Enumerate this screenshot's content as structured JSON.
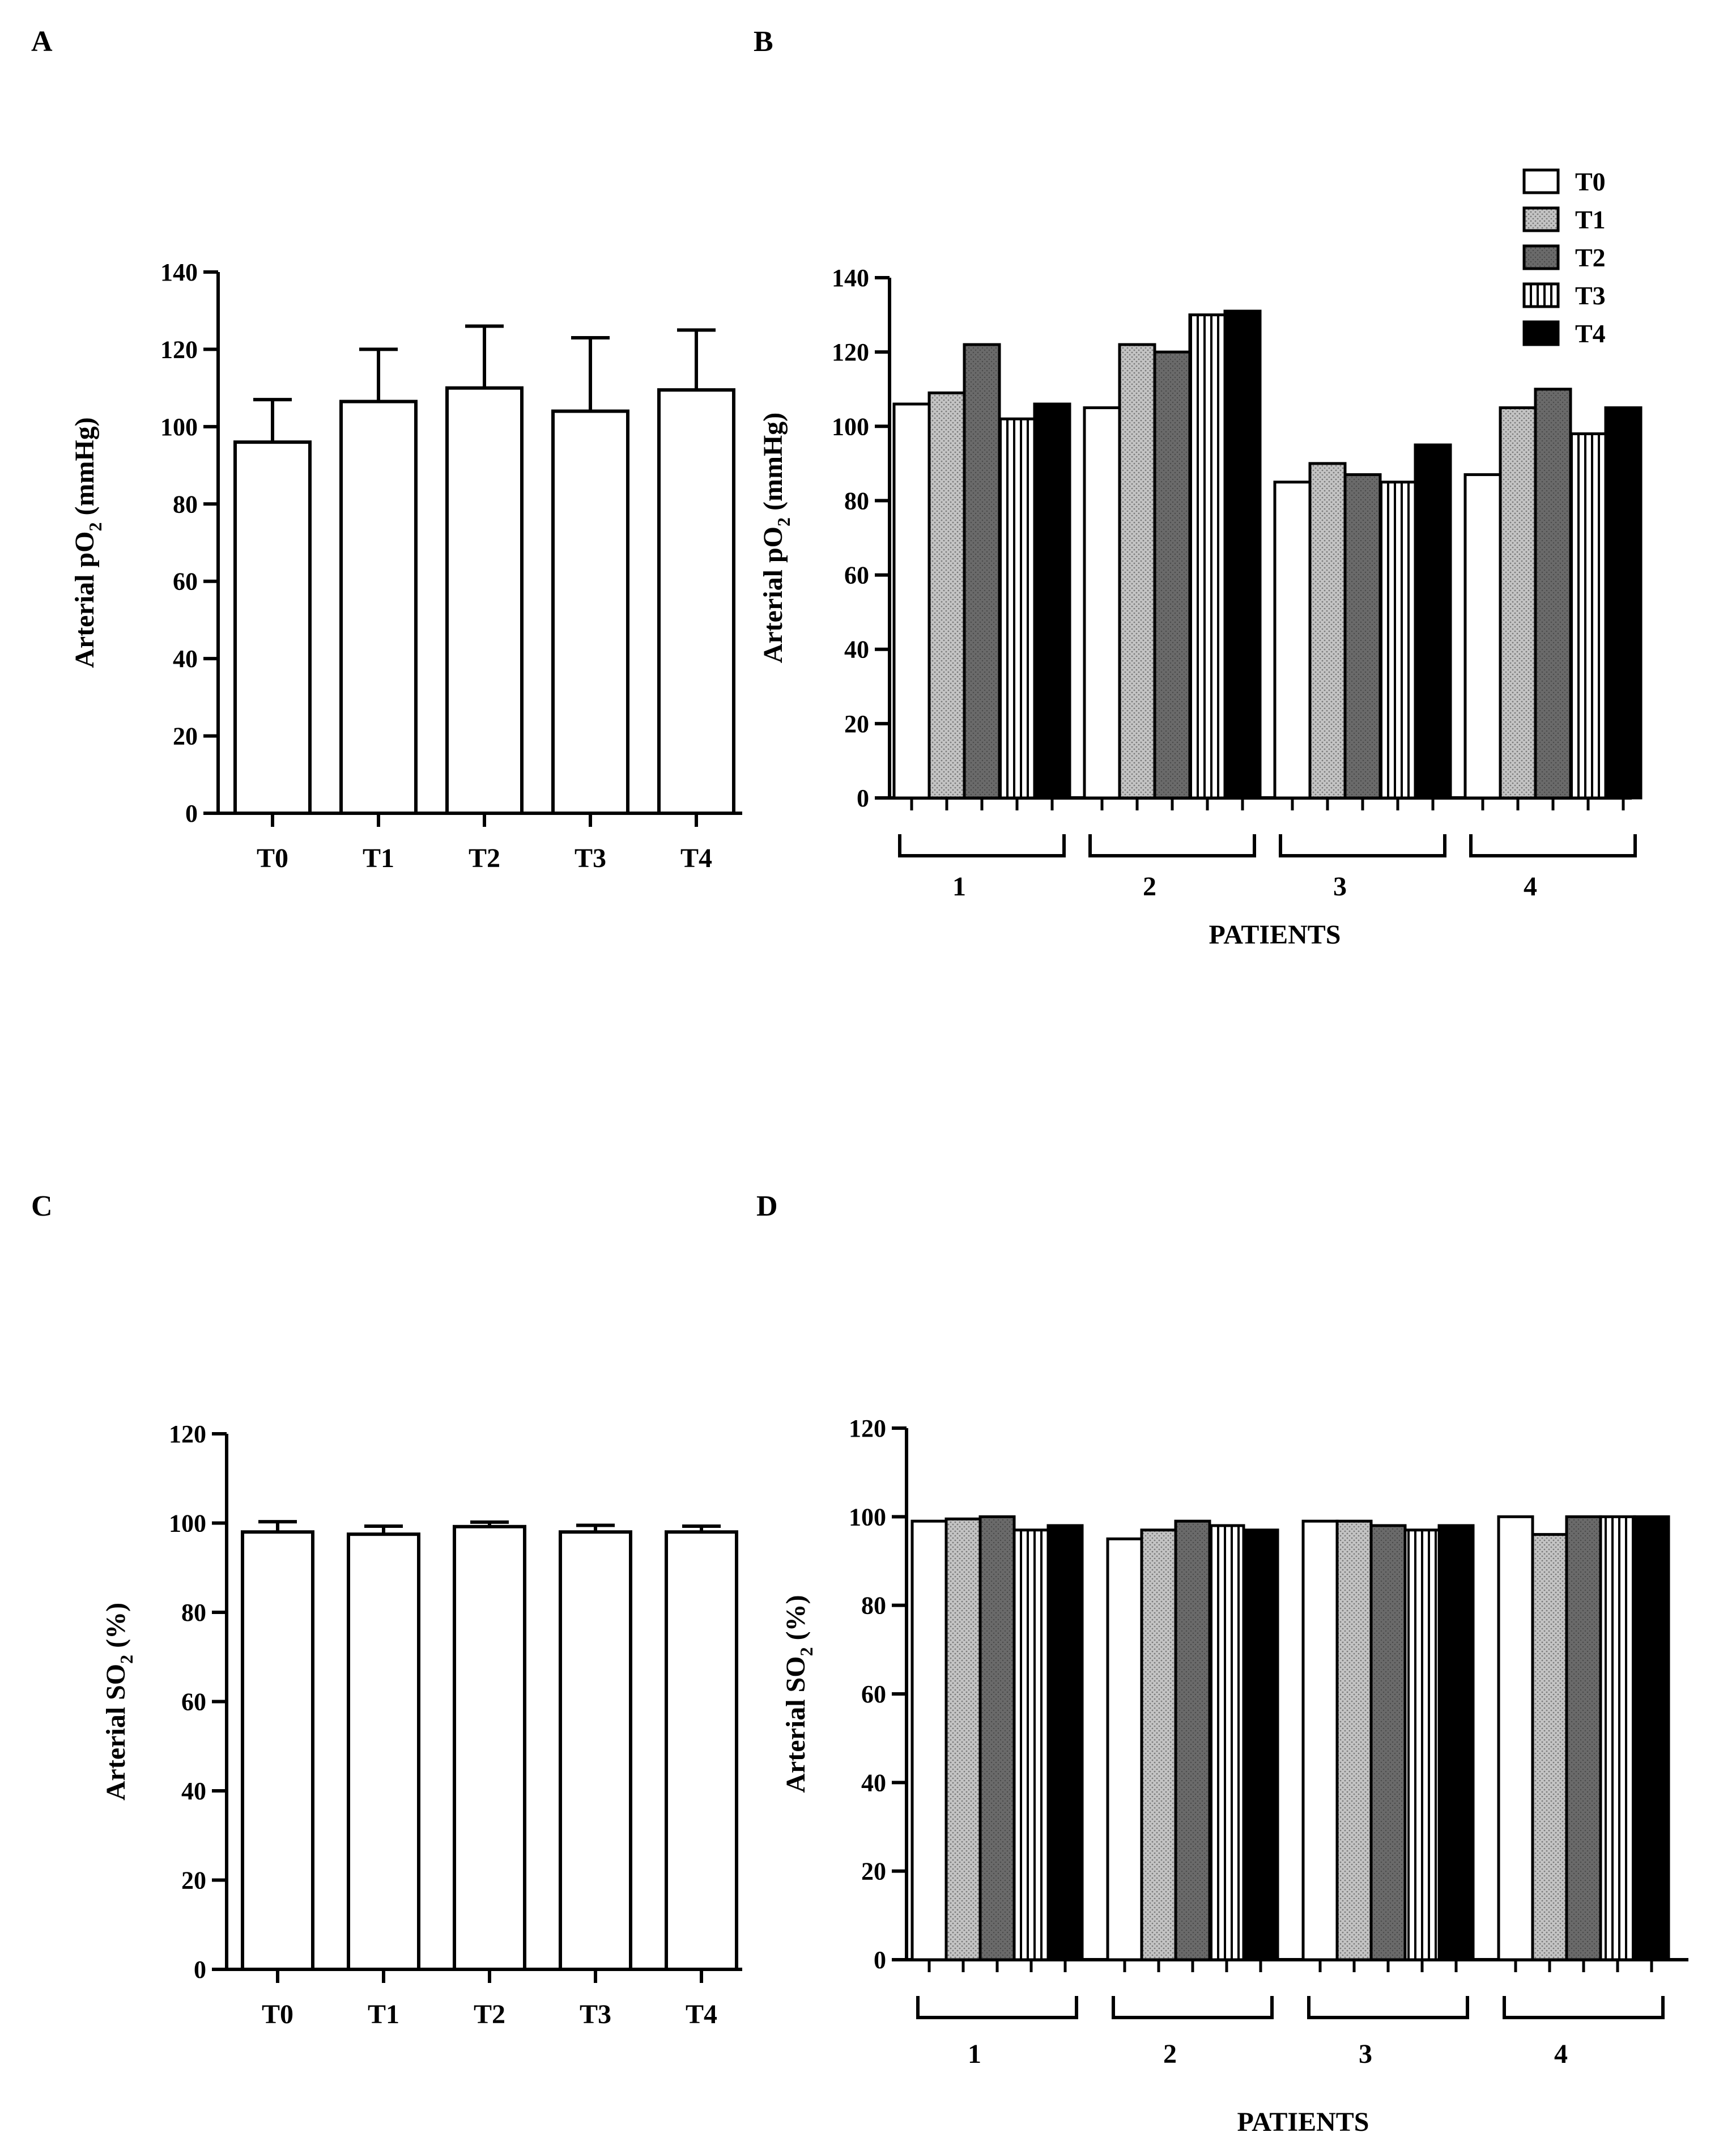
{
  "panels": {
    "A": "A",
    "B": "B",
    "C": "C",
    "D": "D"
  },
  "legend": [
    "T0",
    "T1",
    "T2",
    "T3",
    "T4"
  ],
  "patterns": {
    "T0": "white",
    "T1": "dotted-light-gray",
    "T2": "dark-gray",
    "T3": "vertical-stripes",
    "T4": "black"
  },
  "colors": {
    "T0": "#ffffff",
    "T1": "#b4b4b4",
    "T2": "#6a6a6a",
    "T3": "#ffffff",
    "T4": "#000000",
    "axis": "#000000"
  },
  "chart_data": [
    {
      "panel": "A",
      "type": "bar",
      "categories": [
        "T0",
        "T1",
        "T2",
        "T3",
        "T4"
      ],
      "values": [
        96,
        106.5,
        110,
        104,
        109.5
      ],
      "errors": [
        11,
        13.5,
        16,
        19,
        15.5
      ],
      "ylabel_main": "Arterial pO",
      "ylabel_sub": "2",
      "ylabel_unit": " (mmHg)",
      "ylim": [
        0,
        140
      ],
      "yticks": [
        0,
        20,
        40,
        60,
        80,
        100,
        120,
        140
      ],
      "xlabel": ""
    },
    {
      "panel": "B",
      "type": "bar",
      "groups": [
        "1",
        "2",
        "3",
        "4"
      ],
      "series": [
        {
          "name": "T0",
          "values": [
            106,
            105,
            85,
            87
          ]
        },
        {
          "name": "T1",
          "values": [
            109,
            122,
            90,
            105
          ]
        },
        {
          "name": "T2",
          "values": [
            122,
            120,
            87,
            110
          ]
        },
        {
          "name": "T3",
          "values": [
            102,
            130,
            85,
            98
          ]
        },
        {
          "name": "T4",
          "values": [
            106,
            131,
            95,
            105
          ]
        }
      ],
      "ylabel_main": "Arterial pO",
      "ylabel_sub": "2",
      "ylabel_unit": " (mmHg)",
      "ylim": [
        0,
        140
      ],
      "yticks": [
        0,
        20,
        40,
        60,
        80,
        100,
        120,
        140
      ],
      "xlabel": "PATIENTS",
      "legend_position": "top-right"
    },
    {
      "panel": "C",
      "type": "bar",
      "categories": [
        "T0",
        "T1",
        "T2",
        "T3",
        "T4"
      ],
      "values": [
        98,
        97.5,
        99.2,
        98,
        98
      ],
      "errors": [
        2.3,
        1.8,
        1.0,
        1.5,
        1.3
      ],
      "ylabel_main": "Arterial SO",
      "ylabel_sub": "2",
      "ylabel_unit": " (%)",
      "ylim": [
        0,
        120
      ],
      "yticks": [
        0,
        20,
        40,
        60,
        80,
        100,
        120
      ],
      "xlabel": ""
    },
    {
      "panel": "D",
      "type": "bar",
      "groups": [
        "1",
        "2",
        "3",
        "4"
      ],
      "series": [
        {
          "name": "T0",
          "values": [
            99,
            95,
            99,
            100
          ]
        },
        {
          "name": "T1",
          "values": [
            99.5,
            97,
            99,
            96
          ]
        },
        {
          "name": "T2",
          "values": [
            100,
            99,
            98,
            100
          ]
        },
        {
          "name": "T3",
          "values": [
            97,
            98,
            97,
            100
          ]
        },
        {
          "name": "T4",
          "values": [
            98,
            97,
            98,
            100
          ]
        }
      ],
      "ylabel_main": "Arterial SO",
      "ylabel_sub": "2",
      "ylabel_unit": " (%)",
      "ylim": [
        0,
        120
      ],
      "yticks": [
        0,
        20,
        40,
        60,
        80,
        100,
        120
      ],
      "xlabel": "PATIENTS"
    }
  ]
}
